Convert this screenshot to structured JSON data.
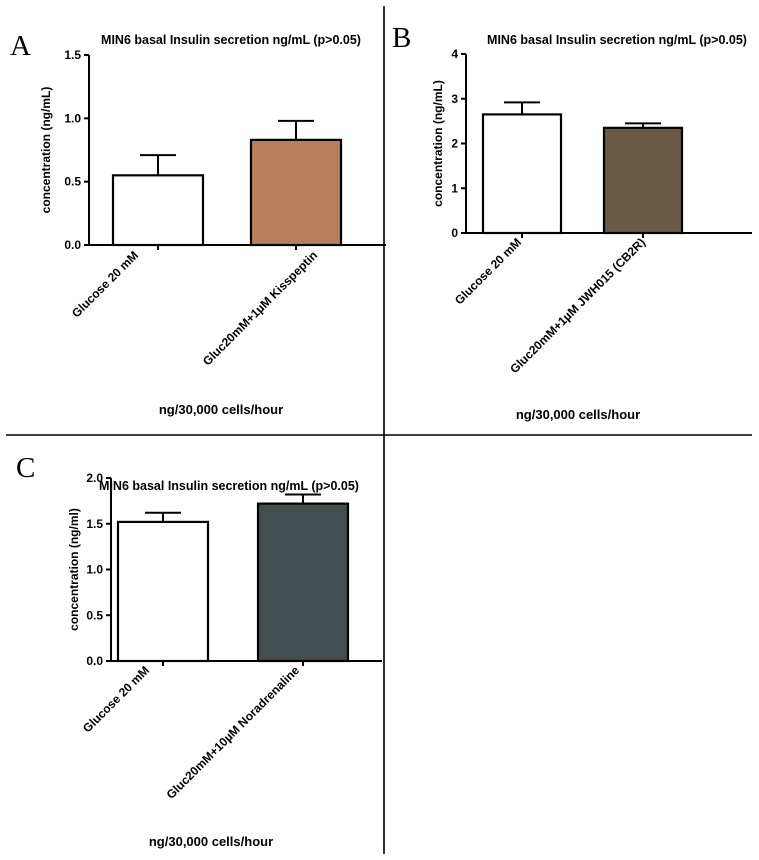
{
  "panels": [
    "A",
    "B",
    "C"
  ],
  "chart_data": [
    {
      "type": "bar",
      "panel": "A",
      "title": "MIN6 basal Insulin secretion ng/mL (p>0.05)",
      "ylabel": "concentration (ng/mL)",
      "xlabel": "ng/30,000 cells/hour",
      "categories": [
        "Glucose 20 mM",
        "Gluc20mM+1µM Kisspeptin"
      ],
      "values": [
        0.55,
        0.83
      ],
      "errors": [
        0.16,
        0.15
      ],
      "colors": [
        "#ffffff",
        "#b97f5d"
      ],
      "ylim": [
        0,
        1.5
      ],
      "yticks": [
        "0.0",
        "0.5",
        "1.0",
        "1.5"
      ],
      "grid": false
    },
    {
      "type": "bar",
      "panel": "B",
      "title": "MIN6 basal Insulin secretion ng/mL (p>0.05)",
      "ylabel": "concentration (ng/mL)",
      "xlabel": "ng/30,000 cells/hour",
      "categories": [
        "Glucose 20 mM",
        "Gluc20mM+1µM JWH015 (CB2R)"
      ],
      "values": [
        2.65,
        2.35
      ],
      "errors": [
        0.27,
        0.1
      ],
      "colors": [
        "#ffffff",
        "#6a5a45"
      ],
      "ylim": [
        0,
        4
      ],
      "yticks": [
        "0",
        "1",
        "2",
        "3",
        "4"
      ],
      "grid": false
    },
    {
      "type": "bar",
      "panel": "C",
      "title": "MIN6 basal Insulin secretion ng/mL (p>0.05)",
      "ylabel": "concentration (ng/ml)",
      "xlabel": "ng/30,000 cells/hour",
      "categories": [
        "Glucose 20 mM",
        "Gluc20mM+10µM Noradrenaline"
      ],
      "values": [
        1.52,
        1.72
      ],
      "errors": [
        0.1,
        0.1
      ],
      "colors": [
        "#ffffff",
        "#434e50"
      ],
      "ylim": [
        0,
        2.0
      ],
      "yticks": [
        "0.0",
        "0.5",
        "1.0",
        "1.5",
        "2.0"
      ],
      "grid": false
    }
  ]
}
